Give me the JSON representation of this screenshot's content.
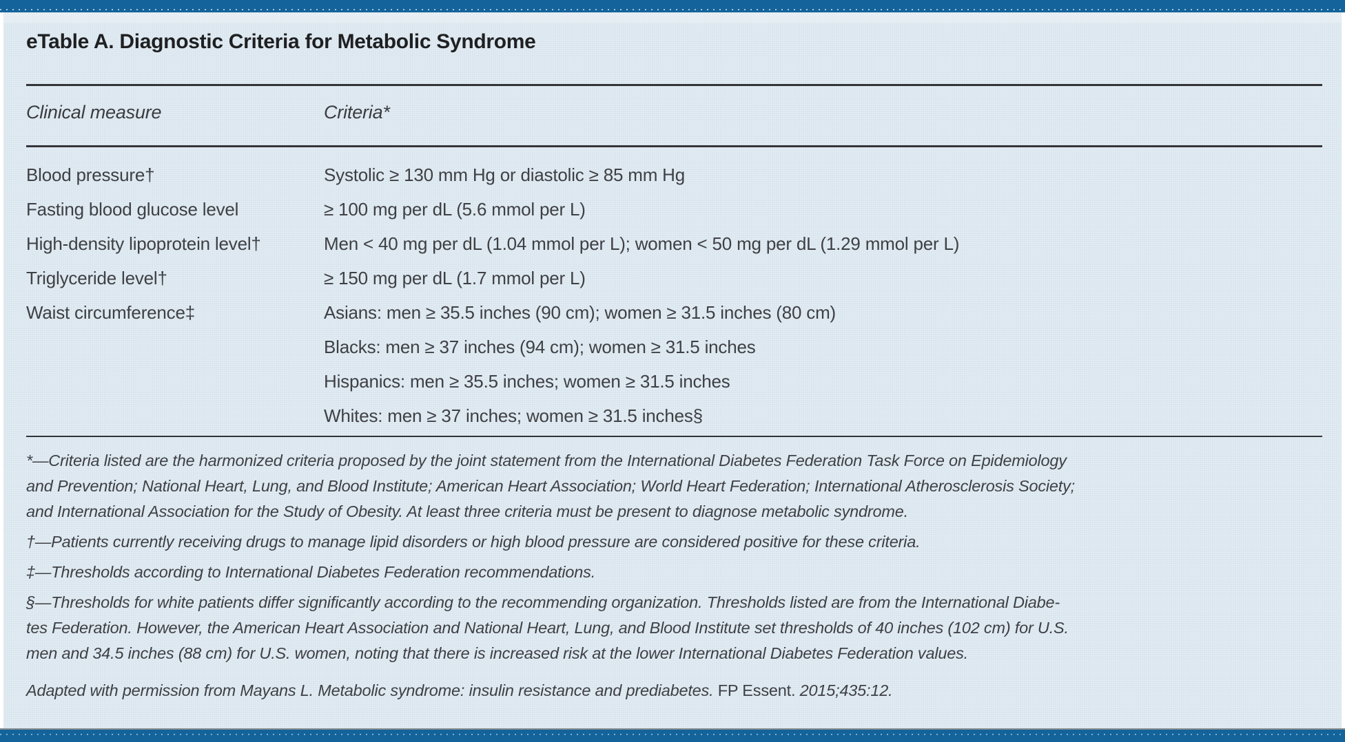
{
  "title": "eTable A. Diagnostic Criteria for Metabolic Syndrome",
  "table": {
    "columns": [
      "Clinical measure",
      "Criteria*"
    ],
    "rows": [
      {
        "measure": "Blood pressure†",
        "criteria": [
          "Systolic ≥ 130 mm Hg or diastolic ≥ 85 mm Hg"
        ]
      },
      {
        "measure": "Fasting blood glucose level",
        "criteria": [
          "≥ 100 mg per dL (5.6 mmol per L)"
        ]
      },
      {
        "measure": "High-density lipoprotein level†",
        "criteria": [
          "Men < 40 mg per dL (1.04 mmol per L); women < 50 mg per dL (1.29 mmol per L)"
        ]
      },
      {
        "measure": "Triglyceride level†",
        "criteria": [
          "≥ 150 mg per dL (1.7 mmol per L)"
        ]
      },
      {
        "measure": "Waist circumference‡",
        "criteria": [
          "Asians: men ≥ 35.5 inches (90 cm); women ≥ 31.5 inches (80 cm)",
          "Blacks: men ≥ 37 inches (94 cm); women ≥ 31.5 inches",
          "Hispanics: men ≥ 35.5 inches; women ≥ 31.5 inches",
          "Whites: men ≥ 37 inches; women ≥ 31.5 inches§"
        ]
      }
    ]
  },
  "footnotes": [
    {
      "id": "asterisk",
      "lines": [
        "*—Criteria listed are the harmonized criteria proposed by the joint statement from the International Diabetes Federation Task Force on Epidemiology",
        "and Prevention; National Heart, Lung, and Blood Institute; American Heart Association; World Heart Federation; International Atherosclerosis Society;",
        "and International Association for the Study of Obesity. At least three criteria must be present to diagnose metabolic syndrome."
      ]
    },
    {
      "id": "dagger",
      "lines": [
        "†—Patients currently receiving drugs to manage lipid disorders or high blood pressure are considered positive for these criteria."
      ]
    },
    {
      "id": "double-dagger",
      "lines": [
        "‡—Thresholds according to International Diabetes Federation recommendations."
      ]
    },
    {
      "id": "section",
      "lines": [
        "§—Thresholds for white patients differ significantly according to the recommending organization. Thresholds listed are from the International Diabe-",
        "tes Federation. However, the American Heart Association and National Heart, Lung, and Blood Institute set thresholds of 40 inches (102 cm) for U.S.",
        "men and 34.5 inches (88 cm) for U.S. women, noting that there is increased risk at the lower International Diabetes Federation values."
      ]
    }
  ],
  "attribution": {
    "segments": [
      {
        "text": "Adapted with permission from Mayans L. Metabolic syndrome: insulin resistance and prediabetes. ",
        "style": "italic"
      },
      {
        "text": "FP Essent.",
        "style": "roman"
      },
      {
        "text": " 2015;435:12.",
        "style": "italic"
      }
    ]
  },
  "colors": {
    "bar_blue": "#14639a",
    "bar_dots": "#a6c8dd",
    "panel_background": "#d9e5ee",
    "rule_dark": "#333438",
    "bottom_gray_line": "#8e9294",
    "text_dark": "#3e4044",
    "title_text": "#1f2022"
  }
}
